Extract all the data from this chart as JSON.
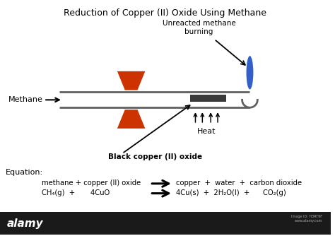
{
  "title": "Reduction of Copper (II) Oxide Using Methane",
  "title_fontsize": 9,
  "bg_color": "#ffffff",
  "tube_color": "#606060",
  "flame_color": "#3060c8",
  "burner_color": "#cc3300",
  "copper_oxide_color": "#3a3a3a",
  "label_methane": "Methane",
  "label_unreacted": "Unreacted methane\nburning",
  "label_copper_oxide": "Black copper (II) oxide",
  "label_heat": "Heat",
  "eq_label": "Equation:",
  "eq_line1_left": "methane + copper (II) oxide",
  "eq_line1_right": "copper  +  water  +  carbon dioxide",
  "eq_line2_left": "CH₄(g)  +       4CuO",
  "eq_line2_right": "4Cu(s)  +  2H₂O(l)  +      CO₂(g)",
  "alamy_bar_color": "#1a1a1a",
  "alamy_text": "alamy",
  "alamy_text_color": "#ffffff",
  "watermark_text": "Image ID: H3RT9F\nwww.alamy.com",
  "watermark_color": "#aaaaaa"
}
